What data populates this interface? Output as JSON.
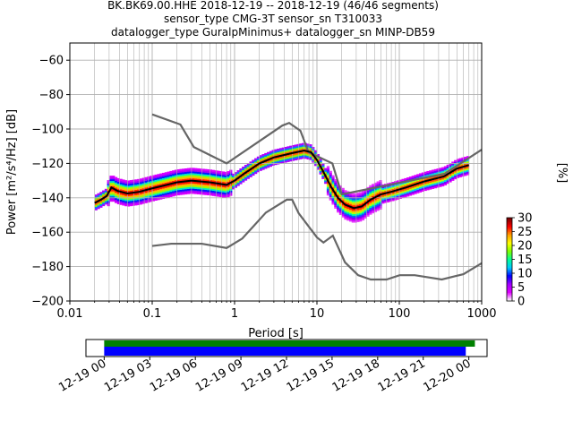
{
  "chart_data": {
    "type": "heatmap",
    "title_lines": [
      "BK.BK69.00.HHE   2018-12-19 -- 2018-12-19  (46/46 segments)",
      "sensor_type CMG-3T sensor_sn T310033",
      "datalogger_type GuralpMinimus+ datalogger_sn MINP-DB59"
    ],
    "xlabel": "Period [s]",
    "ylabel": "Power [m²/s⁴/Hz] [dB]",
    "x_scale": "log",
    "xlim": [
      0.01,
      1000
    ],
    "ylim": [
      -200,
      -50
    ],
    "x_ticks": [
      {
        "value": 0.01,
        "label": "0.01"
      },
      {
        "value": 0.1,
        "label": "0.1"
      },
      {
        "value": 1,
        "label": "1"
      },
      {
        "value": 10,
        "label": "10"
      },
      {
        "value": 100,
        "label": "100"
      },
      {
        "value": 1000,
        "label": "1000"
      }
    ],
    "y_ticks": [
      -60,
      -80,
      -100,
      -120,
      -140,
      -160,
      -180,
      -200
    ],
    "grid": true,
    "colorbar": {
      "label": "[%]",
      "range": [
        0,
        30
      ],
      "ticks": [
        0,
        5,
        10,
        15,
        20,
        25,
        30
      ],
      "colors": [
        "#ffffff",
        "#e000ff",
        "#a000ff",
        "#0000ff",
        "#00c8ff",
        "#00ff9a",
        "#7cff00",
        "#ffff00",
        "#ffa000",
        "#ff0000",
        "#7a0000"
      ]
    },
    "nlnm_color": "#666666",
    "nhnm": [
      [
        0.1,
        -91.5
      ],
      [
        0.22,
        -97.4
      ],
      [
        0.32,
        -110.5
      ],
      [
        0.8,
        -120
      ],
      [
        3.8,
        -98
      ],
      [
        4.6,
        -96.5
      ],
      [
        6.3,
        -101
      ],
      [
        7.9,
        -113.5
      ],
      [
        15.4,
        -120
      ],
      [
        20,
        -138
      ],
      [
        354.8,
        -126
      ],
      [
        1000,
        -112
      ]
    ],
    "nlnm": [
      [
        0.1,
        -168
      ],
      [
        0.17,
        -166.7
      ],
      [
        0.4,
        -166.7
      ],
      [
        0.8,
        -169.2
      ],
      [
        1.24,
        -163.7
      ],
      [
        2.4,
        -148.6
      ],
      [
        4.3,
        -141.1
      ],
      [
        5,
        -141.1
      ],
      [
        6,
        -149
      ],
      [
        10,
        -163
      ],
      [
        12,
        -166
      ],
      [
        15.6,
        -162
      ],
      [
        21.9,
        -177.5
      ],
      [
        31.6,
        -185
      ],
      [
        45,
        -187.5
      ],
      [
        70,
        -187.5
      ],
      [
        101,
        -185
      ],
      [
        154,
        -185
      ],
      [
        328,
        -187.5
      ],
      [
        600,
        -184.4
      ],
      [
        1000,
        -178
      ]
    ],
    "mean_curve": [
      [
        0.02,
        -143
      ],
      [
        0.024,
        -141
      ],
      [
        0.028,
        -139
      ],
      [
        0.032,
        -134
      ],
      [
        0.038,
        -136
      ],
      [
        0.05,
        -137.5
      ],
      [
        0.07,
        -136.5
      ],
      [
        0.1,
        -134.5
      ],
      [
        0.15,
        -132.5
      ],
      [
        0.2,
        -131
      ],
      [
        0.3,
        -130
      ],
      [
        0.5,
        -131
      ],
      [
        0.8,
        -132.5
      ],
      [
        1.0,
        -130
      ],
      [
        1.3,
        -126
      ],
      [
        2.0,
        -120
      ],
      [
        3.0,
        -116.5
      ],
      [
        5.0,
        -114
      ],
      [
        7.0,
        -112.5
      ],
      [
        8.5,
        -113.5
      ],
      [
        10,
        -118
      ],
      [
        12,
        -125
      ],
      [
        15,
        -134
      ],
      [
        18,
        -140
      ],
      [
        22,
        -144
      ],
      [
        28,
        -146
      ],
      [
        35,
        -145
      ],
      [
        45,
        -141
      ],
      [
        60,
        -138
      ],
      [
        80,
        -136.5
      ],
      [
        120,
        -134
      ],
      [
        200,
        -130.5
      ],
      [
        350,
        -127.5
      ],
      [
        500,
        -123
      ],
      [
        700,
        -121
      ]
    ],
    "timeline": {
      "tick_labels": [
        "12-19 00",
        "12-19 03",
        "12-19 06",
        "12-19 09",
        "12-19 12",
        "12-19 15",
        "12-19 18",
        "12-19 21",
        "12-20 00"
      ],
      "range_hours": [
        -1.2,
        25.2
      ],
      "green_bar_hours": [
        0,
        24.4
      ],
      "blue_bar_hours": [
        0,
        23.8
      ],
      "green_color": "#008000",
      "blue_color": "#0000ff"
    }
  }
}
